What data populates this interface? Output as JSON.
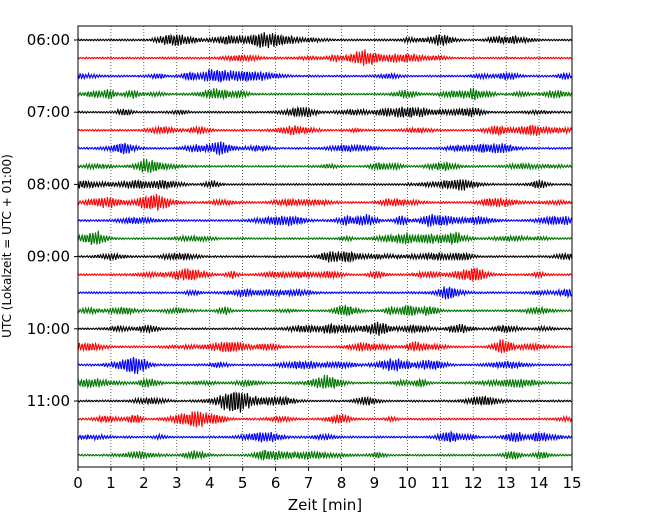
{
  "chart_data": {
    "type": "line",
    "title": "",
    "xlabel": "Zeit  [min]",
    "ylabel": "UTC (Lokalzeit = UTC + 01:00)",
    "xlim": [
      0,
      15
    ],
    "x_ticks": [
      "0",
      "1",
      "2",
      "3",
      "4",
      "5",
      "6",
      "7",
      "8",
      "9",
      "10",
      "11",
      "12",
      "13",
      "14",
      "15"
    ],
    "y_tick_labels": [
      "06:00",
      "07:00",
      "08:00",
      "09:00",
      "10:00",
      "11:00"
    ],
    "grid": "vertical-dotted",
    "trace_interval_min": 15,
    "trace_colors": [
      "#000000",
      "#ff0000",
      "#0000ff",
      "#007700"
    ],
    "series": [
      {
        "label": "06:00"
      },
      {
        "label": "06:15"
      },
      {
        "label": "06:30"
      },
      {
        "label": "06:45"
      },
      {
        "label": "07:00"
      },
      {
        "label": "07:15"
      },
      {
        "label": "07:30"
      },
      {
        "label": "07:45"
      },
      {
        "label": "08:00"
      },
      {
        "label": "08:15"
      },
      {
        "label": "08:30"
      },
      {
        "label": "08:45"
      },
      {
        "label": "09:00"
      },
      {
        "label": "09:15"
      },
      {
        "label": "09:30"
      },
      {
        "label": "09:45"
      },
      {
        "label": "10:00"
      },
      {
        "label": "10:15"
      },
      {
        "label": "10:30"
      },
      {
        "label": "10:45"
      },
      {
        "label": "11:00"
      },
      {
        "label": "11:15"
      },
      {
        "label": "11:30"
      },
      {
        "label": "11:45"
      }
    ]
  }
}
